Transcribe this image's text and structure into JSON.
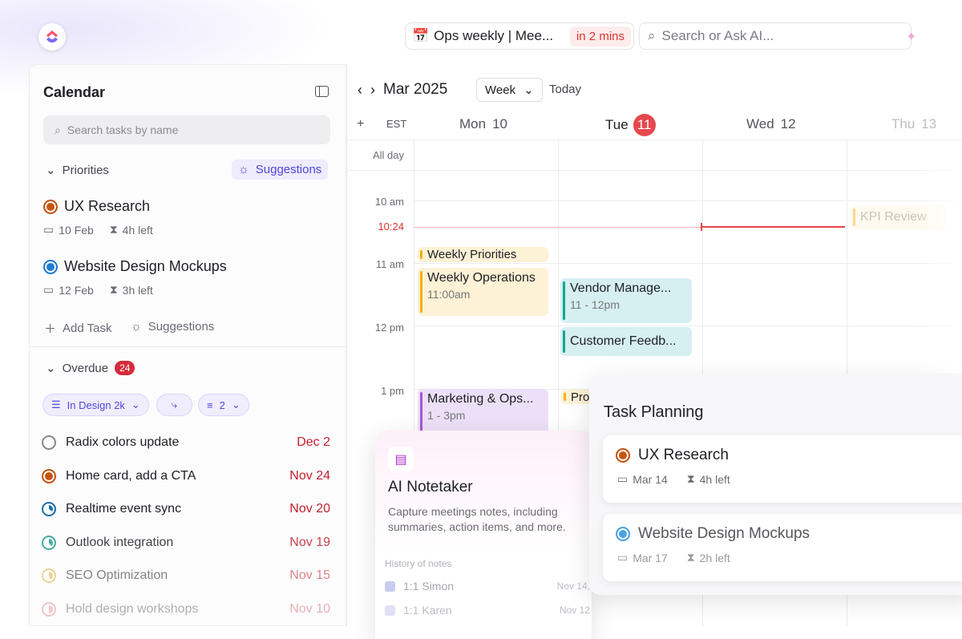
{
  "topbar": {
    "meeting_title": "Ops weekly | Mee...",
    "meeting_countdown": "in 2 mins",
    "search_placeholder": "Search or Ask AI..."
  },
  "sidebar": {
    "title": "Calendar",
    "search_placeholder": "Search tasks by name",
    "priorities_label": "Priorities",
    "suggestions_label": "Suggestions",
    "priorities": [
      {
        "name": "UX Research",
        "date": "10 Feb",
        "left": "4h left",
        "color": "#c4550f"
      },
      {
        "name": "Website Design Mockups",
        "date": "12 Feb",
        "left": "3h left",
        "color": "#1f7ad1"
      }
    ],
    "add_task": "Add Task",
    "suggestions_footer": "Suggestions",
    "overdue_label": "Overdue",
    "overdue_count": "24",
    "chips": {
      "status": "In Design 2k",
      "filter_count": "2"
    },
    "overdue": [
      {
        "name": "Radix colors update",
        "date": "Dec 2",
        "color": "#888"
      },
      {
        "name": "Home card, add a CTA",
        "date": "Nov 24",
        "color": "#c4550f"
      },
      {
        "name": "Realtime event sync",
        "date": "Nov 20",
        "color": "#1f6fa8"
      },
      {
        "name": "Outlook integration",
        "date": "Nov 19",
        "color": "#2a9d8f"
      },
      {
        "name": "SEO Optimization",
        "date": "Nov 15",
        "color": "#e0b040"
      },
      {
        "name": "Hold design workshops",
        "date": "Nov 10",
        "color": "#d66"
      }
    ]
  },
  "calendar": {
    "month": "Mar 2025",
    "view": "Week",
    "today": "Today",
    "timezone": "EST",
    "all_day": "All day",
    "days": [
      {
        "name": "Mon",
        "num": "10"
      },
      {
        "name": "Tue",
        "num": "11"
      },
      {
        "name": "Wed",
        "num": "12"
      },
      {
        "name": "Thu",
        "num": "13"
      }
    ],
    "hours": [
      "10 am",
      "11 am",
      "12 pm",
      "1 pm"
    ],
    "now": "10:24",
    "events": {
      "weekly_priorities": "Weekly Priorities",
      "weekly_operations": {
        "title": "Weekly Operations",
        "time": "11:00am"
      },
      "vendor": {
        "title": "Vendor Manage...",
        "time": "11 - 12pm"
      },
      "customer": "Customer Feedb...",
      "marketing": {
        "title": "Marketing & Ops...",
        "time": "1 - 3pm"
      },
      "pro": "Pro",
      "kpi": "KPI Review"
    },
    "colors": {
      "accent": "#e5484d",
      "yellow": "#f5b000",
      "teal": "#12a594",
      "purple": "#a855d8"
    }
  },
  "notetaker": {
    "title": "AI Notetaker",
    "description": "Capture meetings notes, including summaries, action items, and more.",
    "history_label": "History of notes",
    "notes": [
      {
        "name": "1:1 Simon",
        "date": "Nov 14,"
      },
      {
        "name": "1:1 Karen",
        "date": "Nov 12"
      }
    ]
  },
  "task_planning": {
    "title": "Task Planning",
    "tasks": [
      {
        "name": "UX Research",
        "date": "Mar 14",
        "left": "4h left",
        "color": "#c4550f"
      },
      {
        "name": "Website Design Mockups",
        "date": "Mar 17",
        "left": "2h left",
        "color": "#1f7ad1"
      }
    ]
  }
}
